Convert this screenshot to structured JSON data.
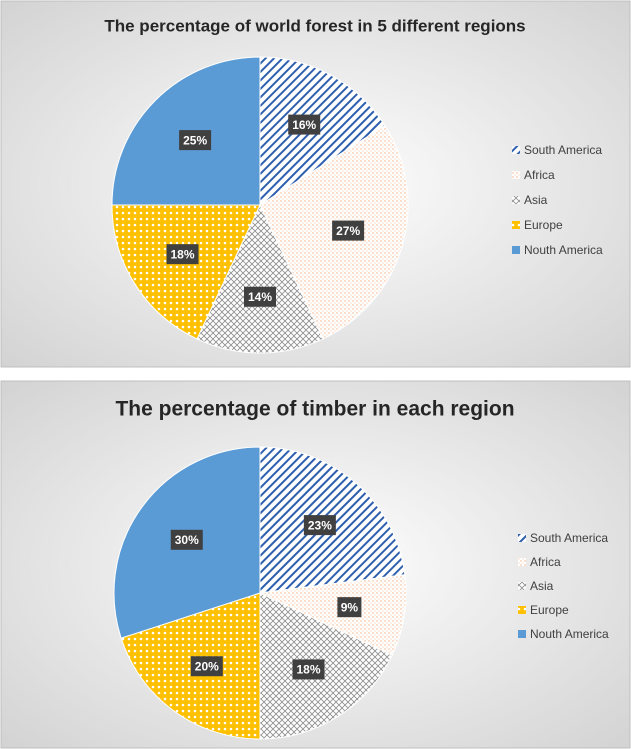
{
  "chart_data": [
    {
      "type": "pie",
      "title": "The percentage of world forest in 5 different regions",
      "categories": [
        "South America",
        "Africa",
        "Asia",
        "Europe",
        "Nouth America"
      ],
      "values": [
        16,
        27,
        14,
        18,
        25
      ],
      "value_labels": [
        "16%",
        "27%",
        "14%",
        "18%",
        "25%"
      ],
      "colors": [
        "#2e5fae",
        "#f4b183",
        "#8c8c8c",
        "#ffc000",
        "#5b9bd5"
      ],
      "legend": "right"
    },
    {
      "type": "pie",
      "title": "The percentage of timber in each region",
      "categories": [
        "South America",
        "Africa",
        "Asia",
        "Europe",
        "Nouth America"
      ],
      "values": [
        23,
        9,
        18,
        20,
        30
      ],
      "value_labels": [
        "23%",
        "9%",
        "18%",
        "20%",
        "30%"
      ],
      "colors": [
        "#2e5fae",
        "#f4b183",
        "#8c8c8c",
        "#ffc000",
        "#5b9bd5"
      ],
      "legend": "right"
    }
  ]
}
